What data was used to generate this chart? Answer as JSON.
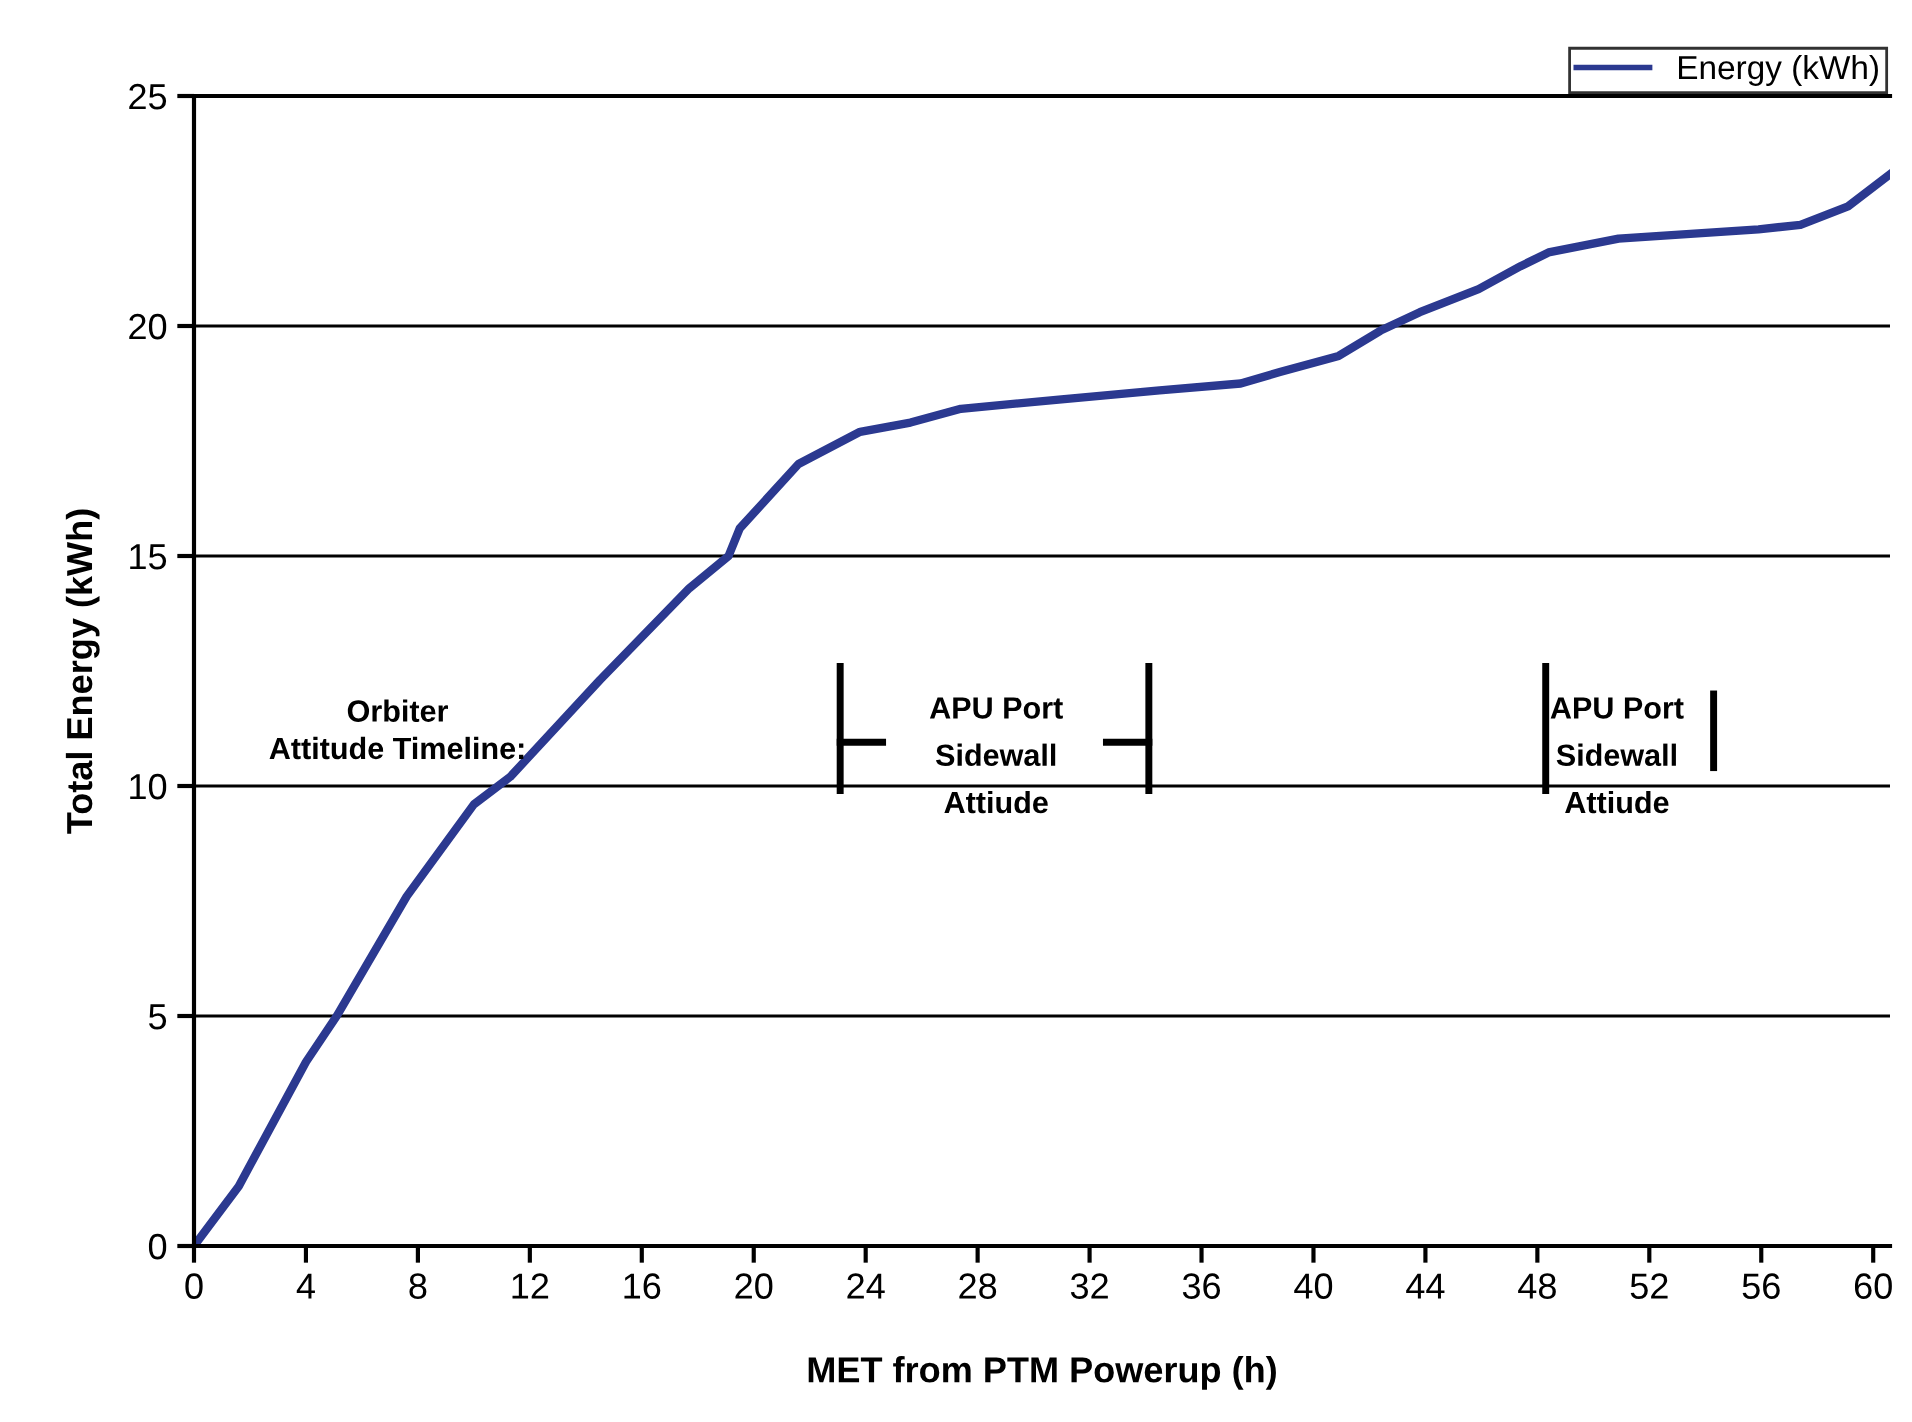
{
  "chart_data": {
    "type": "line",
    "xlabel": "MET from PTM Powerup (h)",
    "ylabel": "Total Energy (kWh)",
    "x": [
      0,
      1.6,
      4,
      5.1,
      7.6,
      10,
      11.3,
      14.5,
      17.7,
      19.1,
      19.5,
      21.6,
      23.8,
      25.6,
      27.4,
      30.9,
      34.5,
      37.4,
      38.8,
      40.9,
      42.4,
      43.8,
      45.9,
      47.4,
      48.4,
      50.9,
      55.9,
      57.4,
      59.1,
      60.6
    ],
    "series": [
      {
        "name": "Energy (kWh)",
        "color": "#2b3990",
        "values": [
          0,
          1.3,
          4.0,
          5.0,
          7.6,
          9.6,
          10.2,
          12.3,
          14.3,
          15.0,
          15.6,
          17.0,
          17.7,
          17.9,
          18.2,
          18.4,
          18.6,
          18.75,
          19.0,
          19.35,
          19.9,
          20.3,
          20.8,
          21.3,
          21.6,
          21.9,
          22.1,
          22.2,
          22.6,
          23.3
        ]
      }
    ],
    "xlim": [
      0,
      60.6
    ],
    "xticks": [
      0,
      4,
      8,
      12,
      16,
      20,
      24,
      28,
      32,
      36,
      40,
      44,
      48,
      52,
      56,
      60
    ],
    "ylim": [
      0,
      25
    ],
    "yticks": [
      0,
      5,
      10,
      15,
      20,
      25
    ],
    "grid": "y",
    "legend": "top right",
    "marker": "none",
    "line_style": "solid",
    "annotations": [
      "Orbiter\nAttitude Timeline:",
      "APU Port\nSidewall\nAttiude",
      "APU Port\nSidewall\nAttiude"
    ]
  }
}
